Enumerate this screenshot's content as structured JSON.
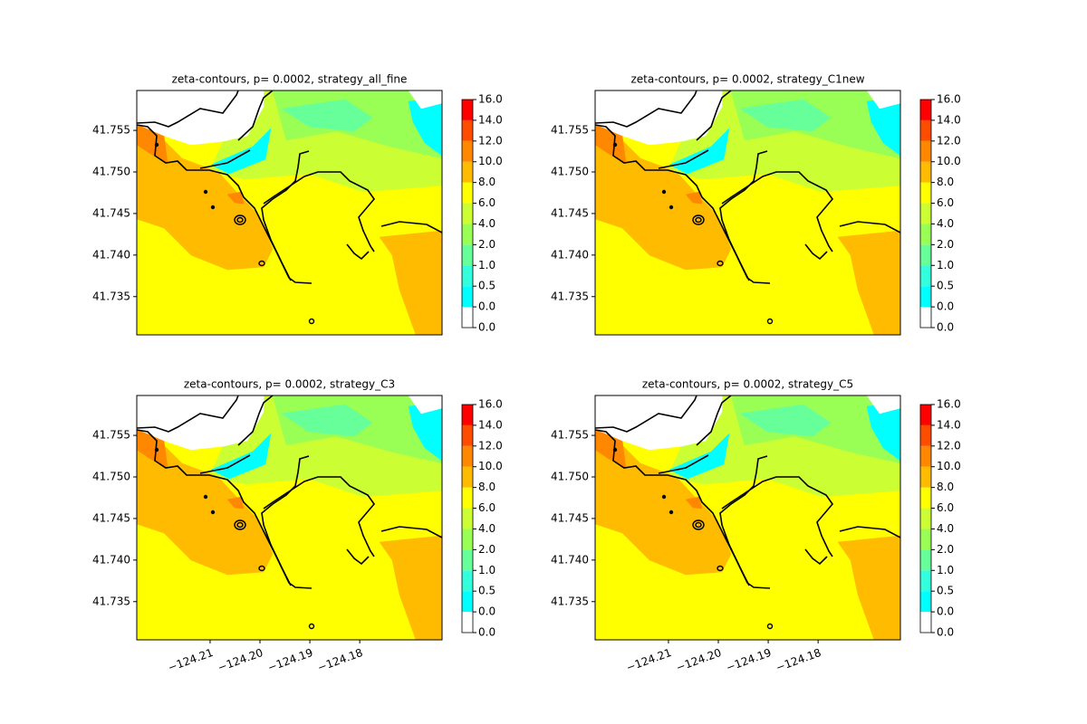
{
  "chart_data": [
    {
      "type": "contour",
      "title": "zeta-contours, p= 0.0002, strategy_all_fine",
      "xlim": [
        -124.2247,
        -124.1635
      ],
      "ylim": [
        41.7304,
        41.7598
      ],
      "yticks": [
        41.735,
        {
          "value": 41.74,
          "label": "41.740"
        },
        41.745,
        {
          "value": 41.75,
          "label": "41.750"
        },
        41.755
      ],
      "colorbar": {
        "ticks": [
          {
            "value": 0,
            "label": "0.0"
          },
          {
            "value": 0,
            "label": "0.0"
          },
          0.5,
          {
            "value": 1,
            "label": "1.0"
          },
          {
            "value": 2,
            "label": "2.0"
          },
          {
            "value": 4,
            "label": "4.0"
          },
          {
            "value": 6,
            "label": "6.0"
          },
          {
            "value": 8,
            "label": "8.0"
          },
          {
            "value": 10,
            "label": "10.0"
          },
          {
            "value": 12,
            "label": "12.0"
          },
          {
            "value": 14,
            "label": "14.0"
          },
          {
            "value": 16,
            "label": "16.0"
          }
        ],
        "colors": [
          "#ffffff",
          "#00ffff",
          "#33ffdd",
          "#66ff99",
          "#99ff55",
          "#ccff33",
          "#ffff00",
          "#ffbb00",
          "#ff8800",
          "#ff4d00",
          "#ff0000"
        ]
      }
    },
    {
      "type": "contour",
      "title": "zeta-contours, p= 0.0002, strategy_C1new",
      "xlim": [
        -124.2247,
        -124.1635
      ],
      "ylim": [
        41.7304,
        41.7598
      ],
      "yticks": [
        41.735,
        {
          "value": 41.74,
          "label": "41.740"
        },
        41.745,
        {
          "value": 41.75,
          "label": "41.750"
        },
        41.755
      ],
      "colorbar": {
        "ticks": [
          {
            "value": 0,
            "label": "0.0"
          },
          {
            "value": 0,
            "label": "0.0"
          },
          0.5,
          {
            "value": 1,
            "label": "1.0"
          },
          {
            "value": 2,
            "label": "2.0"
          },
          {
            "value": 4,
            "label": "4.0"
          },
          {
            "value": 6,
            "label": "6.0"
          },
          {
            "value": 8,
            "label": "8.0"
          },
          {
            "value": 10,
            "label": "10.0"
          },
          {
            "value": 12,
            "label": "12.0"
          },
          {
            "value": 14,
            "label": "14.0"
          },
          {
            "value": 16,
            "label": "16.0"
          }
        ],
        "colors": [
          "#ffffff",
          "#00ffff",
          "#33ffdd",
          "#66ff99",
          "#99ff55",
          "#ccff33",
          "#ffff00",
          "#ffbb00",
          "#ff8800",
          "#ff4d00",
          "#ff0000"
        ]
      }
    },
    {
      "type": "contour",
      "title": "zeta-contours, p= 0.0002, strategy_C3",
      "xlim": [
        -124.2247,
        -124.1635
      ],
      "ylim": [
        41.7304,
        41.7598
      ],
      "xticks": [
        {
          "value": -124.21,
          "label": "−124.21"
        },
        {
          "value": -124.2,
          "label": "−124.20"
        },
        {
          "value": -124.19,
          "label": "−124.19"
        },
        {
          "value": -124.18,
          "label": "−124.18"
        }
      ],
      "yticks": [
        41.735,
        {
          "value": 41.74,
          "label": "41.740"
        },
        41.745,
        {
          "value": 41.75,
          "label": "41.750"
        },
        41.755
      ],
      "colorbar": {
        "ticks": [
          {
            "value": 0,
            "label": "0.0"
          },
          {
            "value": 0,
            "label": "0.0"
          },
          0.5,
          {
            "value": 1,
            "label": "1.0"
          },
          {
            "value": 2,
            "label": "2.0"
          },
          {
            "value": 4,
            "label": "4.0"
          },
          {
            "value": 6,
            "label": "6.0"
          },
          {
            "value": 8,
            "label": "8.0"
          },
          {
            "value": 10,
            "label": "10.0"
          },
          {
            "value": 12,
            "label": "12.0"
          },
          {
            "value": 14,
            "label": "14.0"
          },
          {
            "value": 16,
            "label": "16.0"
          }
        ],
        "colors": [
          "#ffffff",
          "#00ffff",
          "#33ffdd",
          "#66ff99",
          "#99ff55",
          "#ccff33",
          "#ffff00",
          "#ffbb00",
          "#ff8800",
          "#ff4d00",
          "#ff0000"
        ]
      }
    },
    {
      "type": "contour",
      "title": "zeta-contours, p= 0.0002, strategy_C5",
      "xlim": [
        -124.2247,
        -124.1635
      ],
      "ylim": [
        41.7304,
        41.7598
      ],
      "xticks": [
        {
          "value": -124.21,
          "label": "−124.21"
        },
        {
          "value": -124.2,
          "label": "−124.20"
        },
        {
          "value": -124.19,
          "label": "−124.19"
        },
        {
          "value": -124.18,
          "label": "−124.18"
        }
      ],
      "yticks": [
        41.735,
        {
          "value": 41.74,
          "label": "41.740"
        },
        41.745,
        {
          "value": 41.75,
          "label": "41.750"
        },
        41.755
      ],
      "colorbar": {
        "ticks": [
          {
            "value": 0,
            "label": "0.0"
          },
          {
            "value": 0,
            "label": "0.0"
          },
          0.5,
          {
            "value": 1,
            "label": "1.0"
          },
          {
            "value": 2,
            "label": "2.0"
          },
          {
            "value": 4,
            "label": "4.0"
          },
          {
            "value": 6,
            "label": "6.0"
          },
          {
            "value": 8,
            "label": "8.0"
          },
          {
            "value": 10,
            "label": "10.0"
          },
          {
            "value": 12,
            "label": "12.0"
          },
          {
            "value": 14,
            "label": "14.0"
          },
          {
            "value": 16,
            "label": "16.0"
          }
        ],
        "colors": [
          "#ffffff",
          "#00ffff",
          "#33ffdd",
          "#66ff99",
          "#99ff55",
          "#ccff33",
          "#ffff00",
          "#ffbb00",
          "#ff8800",
          "#ff4d00",
          "#ff0000"
        ]
      }
    }
  ]
}
